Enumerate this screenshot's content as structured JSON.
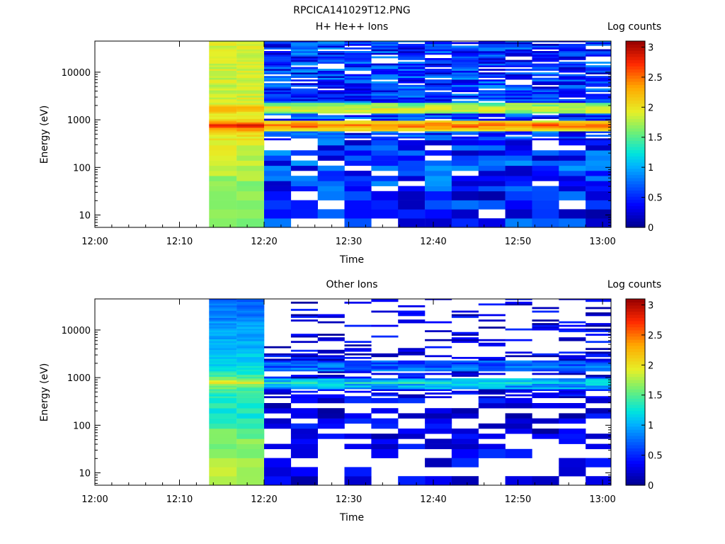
{
  "page": {
    "title": "RPCICA141029T12.PNG"
  },
  "colorbar": {
    "title": "Log counts",
    "min": 0,
    "max": 3.1,
    "ticks": [
      0,
      0.5,
      1,
      1.5,
      2,
      2.5,
      3
    ],
    "tick_labels": [
      "0",
      "0.5",
      "1",
      "1.5",
      "2",
      "2.5",
      "3"
    ]
  },
  "chart_data": [
    {
      "type": "heatmap",
      "title": "H+ He++ Ions",
      "xlabel": "Time",
      "ylabel": "Energy (eV)",
      "y_scale": "log",
      "xlim": [
        "12:00",
        "13:01"
      ],
      "ylim": [
        5.5,
        45000
      ],
      "x_ticks": [
        "12:00",
        "12:10",
        "12:20",
        "12:30",
        "12:40",
        "12:50",
        "13:00"
      ],
      "y_ticks": [
        10,
        100,
        1000,
        10000
      ],
      "y_tick_labels": [
        "10",
        "100",
        "1000",
        "10000"
      ],
      "time_start": "12:13:30",
      "time_end": "13:01:00",
      "time_bins": [
        "12:13:30",
        "12:16:45",
        "12:20:00",
        "12:23:10",
        "12:26:20",
        "12:29:30",
        "12:32:40",
        "12:35:50",
        "12:39:00",
        "12:42:10",
        "12:45:20",
        "12:48:30",
        "12:51:40",
        "12:54:50",
        "12:58:00"
      ],
      "energy_profile": [
        [
          8,
          1.7
        ],
        [
          60,
          1.7
        ],
        [
          100,
          1.8
        ],
        [
          300,
          1.9
        ],
        [
          500,
          2.0
        ],
        [
          650,
          2.4
        ],
        [
          760,
          2.9
        ],
        [
          850,
          2.5
        ],
        [
          1000,
          2.0
        ],
        [
          1400,
          2.0
        ],
        [
          1750,
          2.3
        ],
        [
          2100,
          1.9
        ],
        [
          5000,
          1.85
        ],
        [
          45000,
          1.9
        ]
      ],
      "notes_values": "log counts per (time, energy) cell; values below ~0.02 shown blank"
    },
    {
      "type": "heatmap",
      "title": "Other Ions",
      "xlabel": "Time",
      "ylabel": "Energy (eV)",
      "y_scale": "log",
      "xlim": [
        "12:00",
        "13:01"
      ],
      "ylim": [
        5.5,
        45000
      ],
      "x_ticks": [
        "12:00",
        "12:10",
        "12:20",
        "12:30",
        "12:40",
        "12:50",
        "13:00"
      ],
      "y_ticks": [
        10,
        100,
        1000,
        10000
      ],
      "y_tick_labels": [
        "10",
        "100",
        "1000",
        "10000"
      ],
      "time_start": "12:13:30",
      "time_end": "13:01:00",
      "time_bins": [
        "12:13:30",
        "12:16:45",
        "12:20:00",
        "12:23:10",
        "12:26:20",
        "12:29:30",
        "12:32:40",
        "12:35:50",
        "12:39:00",
        "12:42:10",
        "12:45:20",
        "12:48:30",
        "12:51:40",
        "12:54:50",
        "12:58:00"
      ],
      "energy_profile": [
        [
          8,
          1.75
        ],
        [
          30,
          1.7
        ],
        [
          60,
          1.6
        ],
        [
          150,
          1.3
        ],
        [
          400,
          1.3
        ],
        [
          700,
          1.6
        ],
        [
          780,
          2.1
        ],
        [
          900,
          1.6
        ],
        [
          1500,
          1.2
        ],
        [
          3000,
          1.1
        ],
        [
          10000,
          0.95
        ],
        [
          45000,
          0.7
        ]
      ]
    }
  ]
}
